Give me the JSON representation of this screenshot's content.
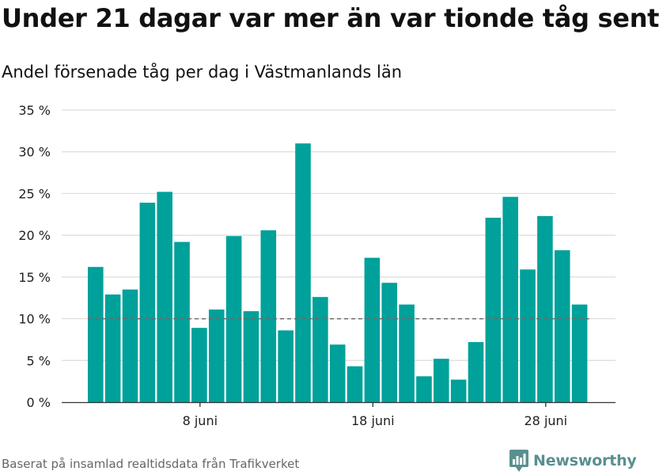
{
  "chart_data": {
    "type": "bar",
    "title": "Under 21 dagar var mer än var tionde tåg sent",
    "subtitle": "Andel försenade tåg per dag i Västmanlands län",
    "ylim": [
      0,
      35
    ],
    "yticks": [
      0,
      5,
      10,
      15,
      20,
      25,
      30,
      35
    ],
    "ytick_labels": [
      "0 %",
      "5 %",
      "10 %",
      "15 %",
      "20 %",
      "25 %",
      "30 %",
      "35 %"
    ],
    "xtick_labels": [
      {
        "label": "8 juni",
        "index": 6.5
      },
      {
        "label": "18 juni",
        "index": 16.5
      },
      {
        "label": "28 juni",
        "index": 26.5
      }
    ],
    "values": [
      16.2,
      12.9,
      13.5,
      23.9,
      25.2,
      19.2,
      8.9,
      11.1,
      19.9,
      10.9,
      20.6,
      8.6,
      31.0,
      12.6,
      6.9,
      4.3,
      17.3,
      14.3,
      11.7,
      3.1,
      5.2,
      2.7,
      7.2,
      22.1,
      24.6,
      15.9,
      22.3,
      18.2,
      11.7
    ],
    "reference_line": 10,
    "bar_color": "#00a19a",
    "grid": true,
    "legend": "none"
  },
  "footer": {
    "source": "Baserat på insamlad realtidsdata från Trafikverket",
    "brand": "Newsworthy",
    "brand_color": "#5a8f8f"
  }
}
